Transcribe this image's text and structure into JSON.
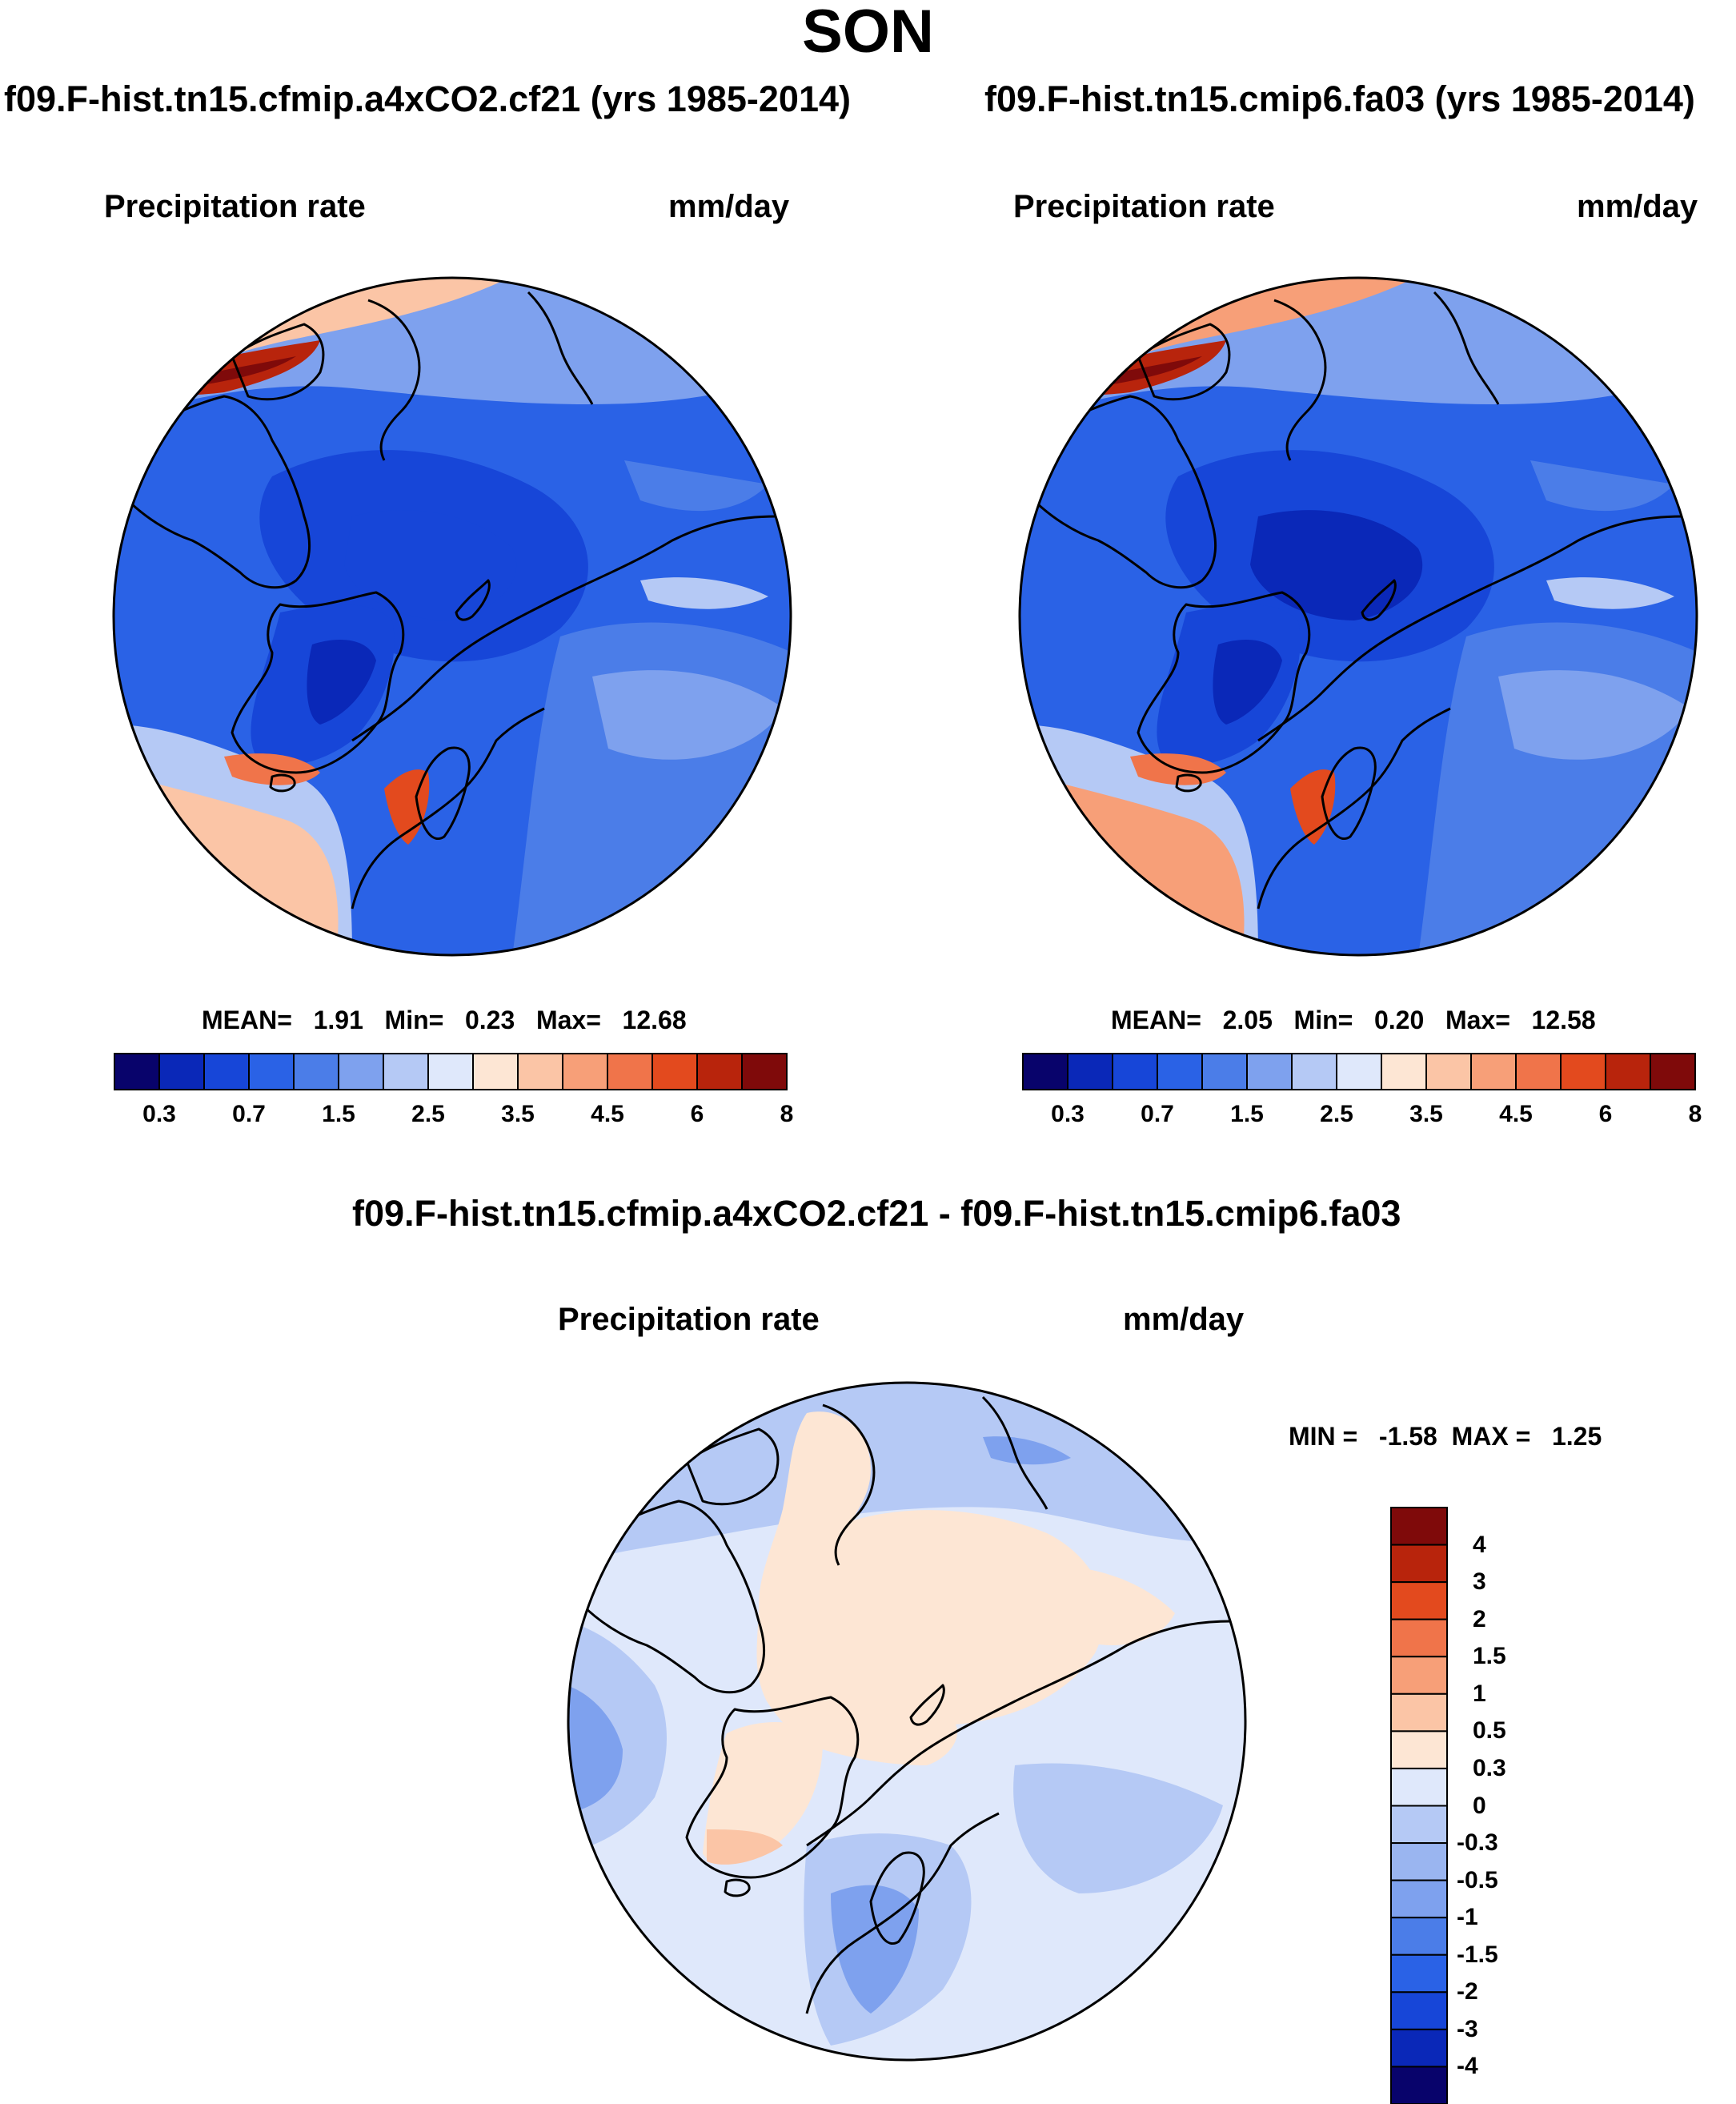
{
  "title": "SON",
  "panels": [
    {
      "title": "f09.F-hist.tn15.cfmip.a4xCO2.cf21 (yrs 1985-2014)",
      "variable": "Precipitation rate",
      "units": "mm/day",
      "stats": {
        "mean_label": "MEAN=",
        "mean": "1.91",
        "min_label": "Min=",
        "min": "0.23",
        "max_label": "Max=",
        "max": "12.68"
      }
    },
    {
      "title": "f09.F-hist.tn15.cmip6.fa03 (yrs 1985-2014)",
      "variable": "Precipitation rate",
      "units": "mm/day",
      "stats": {
        "mean_label": "MEAN=",
        "mean": "2.05",
        "min_label": "Min=",
        "min": "0.20",
        "max_label": "Max=",
        "max": "12.58"
      }
    },
    {
      "title": "f09.F-hist.tn15.cfmip.a4xCO2.cf21 - f09.F-hist.tn15.cmip6.fa03",
      "variable": "Precipitation rate",
      "units": "mm/day",
      "stats": {
        "min_label": "MIN =",
        "min": "-1.58",
        "max_label": "MAX =",
        "max": "1.25"
      }
    }
  ],
  "chart_data": [
    {
      "type": "heatmap",
      "projection": "north-polar-stereographic",
      "title": "f09.F-hist.tn15.cfmip.a4xCO2.cf21 (yrs 1985-2014)",
      "variable": "Precipitation rate",
      "units": "mm/day",
      "mean": 1.91,
      "min": 0.23,
      "max": 12.68,
      "colorbar": {
        "orientation": "horizontal",
        "tick_labels": [
          "0.3",
          "0.7",
          "1.5",
          "2.5",
          "3.5",
          "4.5",
          "6",
          "8"
        ],
        "colors": [
          "#08036b",
          "#0a28b8",
          "#1746d8",
          "#2a62e6",
          "#4b7de8",
          "#7ea1ee",
          "#b5c9f5",
          "#dfe8fb",
          "#fde6d4",
          "#fbc5a6",
          "#f79f78",
          "#f0744a",
          "#e34a1e",
          "#b8240c",
          "#7f0a0a"
        ]
      }
    },
    {
      "type": "heatmap",
      "projection": "north-polar-stereographic",
      "title": "f09.F-hist.tn15.cmip6.fa03 (yrs 1985-2014)",
      "variable": "Precipitation rate",
      "units": "mm/day",
      "mean": 2.05,
      "min": 0.2,
      "max": 12.58,
      "colorbar": {
        "orientation": "horizontal",
        "tick_labels": [
          "0.3",
          "0.7",
          "1.5",
          "2.5",
          "3.5",
          "4.5",
          "6",
          "8"
        ],
        "colors": [
          "#08036b",
          "#0a28b8",
          "#1746d8",
          "#2a62e6",
          "#4b7de8",
          "#7ea1ee",
          "#b5c9f5",
          "#dfe8fb",
          "#fde6d4",
          "#fbc5a6",
          "#f79f78",
          "#f0744a",
          "#e34a1e",
          "#b8240c",
          "#7f0a0a"
        ]
      }
    },
    {
      "type": "heatmap",
      "projection": "north-polar-stereographic",
      "title": "f09.F-hist.tn15.cfmip.a4xCO2.cf21 - f09.F-hist.tn15.cmip6.fa03",
      "variable": "Precipitation rate",
      "units": "mm/day",
      "min": -1.58,
      "max": 1.25,
      "colorbar": {
        "orientation": "vertical",
        "tick_labels": [
          "4",
          "3",
          "2",
          "1.5",
          "1",
          "0.5",
          "0.3",
          "0",
          "-0.3",
          "-0.5",
          "-1",
          "-1.5",
          "-2",
          "-3",
          "-4"
        ],
        "colors": [
          "#7f0a0a",
          "#b8240c",
          "#e34a1e",
          "#f0744a",
          "#f79f78",
          "#fbc5a6",
          "#fde6d4",
          "#dfe8fb",
          "#b5c9f5",
          "#9ab5f0",
          "#7ea1ee",
          "#4b7de8",
          "#2a62e6",
          "#1746d8",
          "#0a28b8",
          "#08036b"
        ]
      }
    }
  ]
}
